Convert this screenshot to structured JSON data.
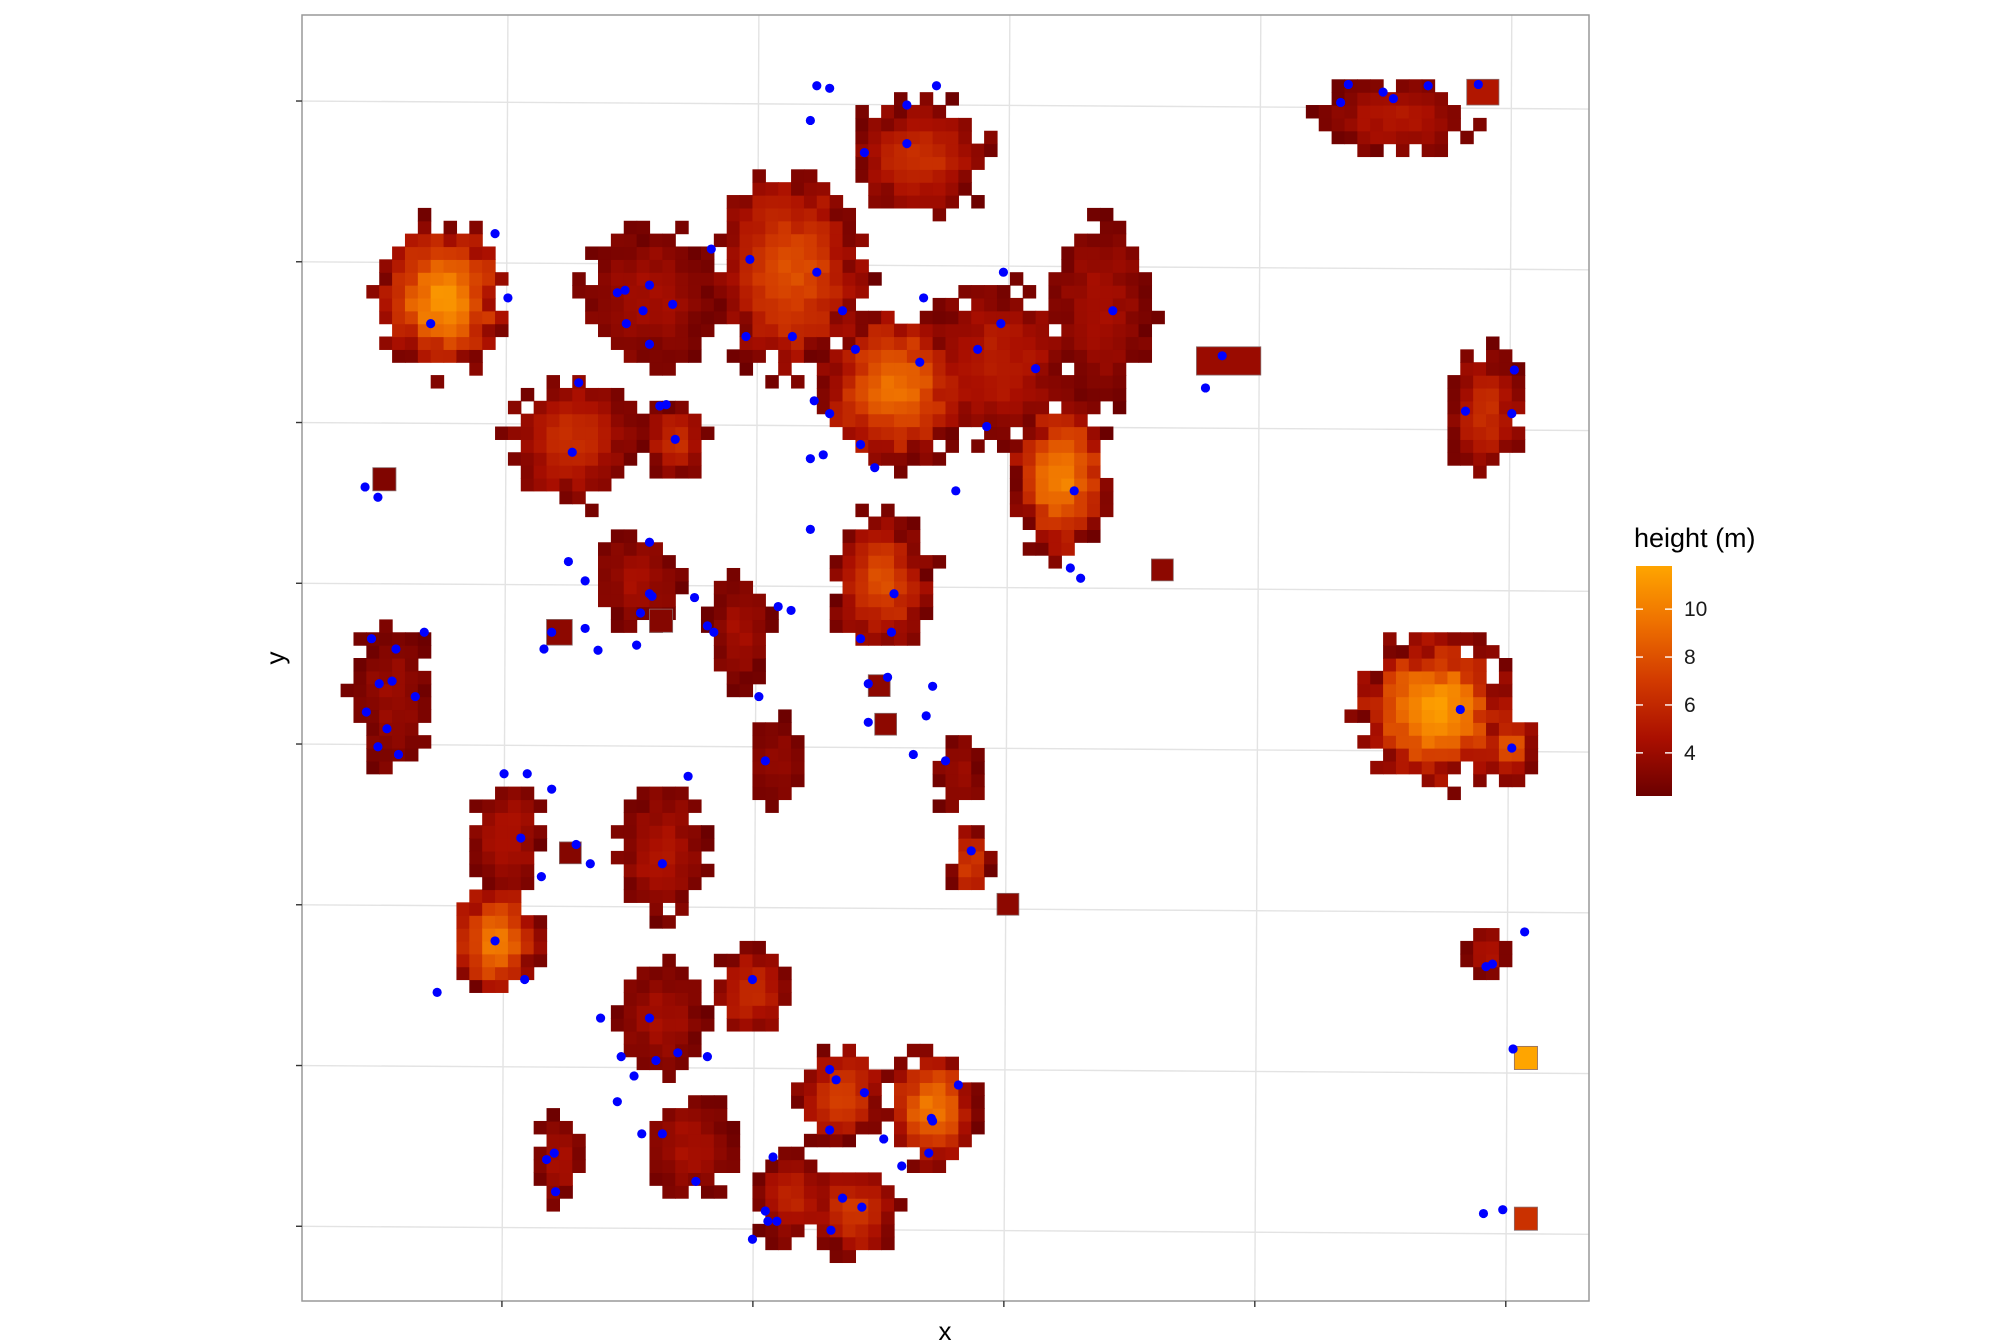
{
  "chart_data": {
    "type": "heatmap",
    "title": "",
    "xlabel": "x",
    "ylabel": "y",
    "x_tick_labels": [],
    "y_tick_labels": [],
    "grid": true,
    "xlim": [
      0,
      1
    ],
    "ylim": [
      0,
      1
    ],
    "legend": {
      "title": "height (m)",
      "position": "right",
      "range": [
        2.2,
        11.8
      ],
      "ticks": [
        4,
        6,
        8,
        10
      ],
      "tick_labels": [
        "4",
        "6",
        "8",
        "10"
      ],
      "colors": [
        "#6b0000",
        "#aa0f00",
        "#d23a00",
        "#ee7000",
        "#ffa500"
      ]
    },
    "point_color": "#0000ff",
    "crowns": [
      {
        "cx": 0.11,
        "cy": 0.78,
        "rx": 0.05,
        "ry": 0.06,
        "peak": 11.2,
        "treetop": [
          0.1,
          0.76
        ]
      },
      {
        "cx": 0.48,
        "cy": 0.89,
        "rx": 0.055,
        "ry": 0.045,
        "peak": 6.5,
        "treetop": [
          0.47,
          0.93
        ]
      },
      {
        "cx": 0.85,
        "cy": 0.92,
        "rx": 0.06,
        "ry": 0.03,
        "peak": 5.0,
        "treetop": [
          0.84,
          0.94
        ]
      },
      {
        "cx": 0.27,
        "cy": 0.78,
        "rx": 0.055,
        "ry": 0.055,
        "peak": 4.5,
        "treetop": [
          0.27,
          0.79
        ]
      },
      {
        "cx": 0.38,
        "cy": 0.8,
        "rx": 0.06,
        "ry": 0.08,
        "peak": 8.0,
        "treetop": [
          0.4,
          0.8
        ]
      },
      {
        "cx": 0.46,
        "cy": 0.71,
        "rx": 0.06,
        "ry": 0.06,
        "peak": 9.5,
        "treetop": [
          0.43,
          0.74
        ]
      },
      {
        "cx": 0.54,
        "cy": 0.73,
        "rx": 0.06,
        "ry": 0.06,
        "peak": 5.5,
        "treetop": [
          0.48,
          0.73
        ]
      },
      {
        "cx": 0.62,
        "cy": 0.77,
        "rx": 0.04,
        "ry": 0.07,
        "peak": 4.5,
        "treetop": [
          0.63,
          0.77
        ]
      },
      {
        "cx": 0.59,
        "cy": 0.64,
        "rx": 0.04,
        "ry": 0.06,
        "peak": 10.5,
        "treetop": [
          0.6,
          0.63
        ]
      },
      {
        "cx": 0.21,
        "cy": 0.67,
        "rx": 0.05,
        "ry": 0.05,
        "peak": 6.5,
        "treetop": [
          0.21,
          0.66
        ]
      },
      {
        "cx": 0.29,
        "cy": 0.67,
        "rx": 0.025,
        "ry": 0.03,
        "peak": 6.5,
        "treetop": [
          0.29,
          0.67
        ]
      },
      {
        "cx": 0.45,
        "cy": 0.56,
        "rx": 0.04,
        "ry": 0.05,
        "peak": 8.0,
        "treetop": [
          0.46,
          0.55
        ]
      },
      {
        "cx": 0.07,
        "cy": 0.47,
        "rx": 0.03,
        "ry": 0.06,
        "peak": 4.0,
        "treetop": [
          0.06,
          0.48
        ]
      },
      {
        "cx": 0.26,
        "cy": 0.56,
        "rx": 0.035,
        "ry": 0.035,
        "peak": 4.5,
        "treetop": [
          0.27,
          0.55
        ]
      },
      {
        "cx": 0.34,
        "cy": 0.52,
        "rx": 0.025,
        "ry": 0.045,
        "peak": 4.5,
        "treetop": [
          0.32,
          0.52
        ]
      },
      {
        "cx": 0.92,
        "cy": 0.69,
        "rx": 0.03,
        "ry": 0.05,
        "peak": 6.5,
        "treetop": [
          0.94,
          0.69
        ]
      },
      {
        "cx": 0.88,
        "cy": 0.46,
        "rx": 0.06,
        "ry": 0.06,
        "peak": 11.5,
        "treetop": [
          0.9,
          0.46
        ]
      },
      {
        "cx": 0.94,
        "cy": 0.43,
        "rx": 0.02,
        "ry": 0.025,
        "peak": 9.0,
        "treetop": [
          0.94,
          0.43
        ]
      },
      {
        "cx": 0.16,
        "cy": 0.36,
        "rx": 0.03,
        "ry": 0.045,
        "peak": 5.0,
        "treetop": [
          0.17,
          0.36
        ]
      },
      {
        "cx": 0.15,
        "cy": 0.28,
        "rx": 0.035,
        "ry": 0.045,
        "peak": 10.0,
        "treetop": [
          0.15,
          0.28
        ]
      },
      {
        "cx": 0.28,
        "cy": 0.35,
        "rx": 0.035,
        "ry": 0.05,
        "peak": 5.0,
        "treetop": [
          0.28,
          0.34
        ]
      },
      {
        "cx": 0.37,
        "cy": 0.42,
        "rx": 0.02,
        "ry": 0.035,
        "peak": 4.0,
        "treetop": [
          0.36,
          0.42
        ]
      },
      {
        "cx": 0.51,
        "cy": 0.41,
        "rx": 0.02,
        "ry": 0.03,
        "peak": 4.0,
        "treetop": [
          0.5,
          0.42
        ]
      },
      {
        "cx": 0.52,
        "cy": 0.34,
        "rx": 0.015,
        "ry": 0.03,
        "peak": 7.5,
        "treetop": [
          0.52,
          0.35
        ]
      },
      {
        "cx": 0.28,
        "cy": 0.22,
        "rx": 0.035,
        "ry": 0.045,
        "peak": 4.5,
        "treetop": [
          0.27,
          0.22
        ]
      },
      {
        "cx": 0.35,
        "cy": 0.24,
        "rx": 0.03,
        "ry": 0.035,
        "peak": 6.5,
        "treetop": [
          0.35,
          0.25
        ]
      },
      {
        "cx": 0.42,
        "cy": 0.16,
        "rx": 0.035,
        "ry": 0.04,
        "peak": 7.5,
        "treetop": [
          0.41,
          0.18
        ]
      },
      {
        "cx": 0.49,
        "cy": 0.15,
        "rx": 0.035,
        "ry": 0.045,
        "peak": 10.0,
        "treetop": [
          0.49,
          0.14
        ]
      },
      {
        "cx": 0.2,
        "cy": 0.11,
        "rx": 0.02,
        "ry": 0.035,
        "peak": 4.5,
        "treetop": [
          0.19,
          0.11
        ]
      },
      {
        "cx": 0.3,
        "cy": 0.12,
        "rx": 0.035,
        "ry": 0.04,
        "peak": 4.5,
        "treetop": [
          0.28,
          0.13
        ]
      },
      {
        "cx": 0.38,
        "cy": 0.08,
        "rx": 0.03,
        "ry": 0.035,
        "peak": 6.0,
        "treetop": [
          0.36,
          0.07
        ]
      },
      {
        "cx": 0.43,
        "cy": 0.07,
        "rx": 0.035,
        "ry": 0.035,
        "peak": 7.0,
        "treetop": [
          0.42,
          0.08
        ]
      },
      {
        "cx": 0.92,
        "cy": 0.27,
        "rx": 0.018,
        "ry": 0.02,
        "peak": 5.0,
        "treetop": [
          0.92,
          0.26
        ]
      }
    ],
    "small_patches": [
      {
        "x": 0.055,
        "y": 0.63,
        "w": 0.018,
        "h": 0.018,
        "value": 3.0
      },
      {
        "x": 0.19,
        "y": 0.51,
        "w": 0.02,
        "h": 0.02,
        "value": 3.5
      },
      {
        "x": 0.27,
        "y": 0.52,
        "w": 0.018,
        "h": 0.018,
        "value": 3.2
      },
      {
        "x": 0.2,
        "y": 0.34,
        "w": 0.017,
        "h": 0.017,
        "value": 3.2
      },
      {
        "x": 0.44,
        "y": 0.47,
        "w": 0.017,
        "h": 0.017,
        "value": 3.5
      },
      {
        "x": 0.445,
        "y": 0.44,
        "w": 0.017,
        "h": 0.017,
        "value": 3.5
      },
      {
        "x": 0.54,
        "y": 0.3,
        "w": 0.017,
        "h": 0.017,
        "value": 3.5
      },
      {
        "x": 0.66,
        "y": 0.56,
        "w": 0.017,
        "h": 0.017,
        "value": 3.5
      },
      {
        "x": 0.695,
        "y": 0.72,
        "w": 0.05,
        "h": 0.022,
        "value": 4.0
      },
      {
        "x": 0.905,
        "y": 0.93,
        "w": 0.025,
        "h": 0.02,
        "value": 5.0
      },
      {
        "x": 0.942,
        "y": 0.18,
        "w": 0.018,
        "h": 0.018,
        "value": 11.8
      },
      {
        "x": 0.942,
        "y": 0.055,
        "w": 0.018,
        "h": 0.018,
        "value": 6.5
      }
    ],
    "treetops": [
      [
        0.049,
        0.633
      ],
      [
        0.059,
        0.625
      ],
      [
        0.054,
        0.515
      ],
      [
        0.073,
        0.507
      ],
      [
        0.095,
        0.52
      ],
      [
        0.07,
        0.482
      ],
      [
        0.066,
        0.445
      ],
      [
        0.088,
        0.47
      ],
      [
        0.075,
        0.425
      ],
      [
        0.059,
        0.431
      ],
      [
        0.05,
        0.458
      ],
      [
        0.188,
        0.507
      ],
      [
        0.194,
        0.52
      ],
      [
        0.22,
        0.523
      ],
      [
        0.23,
        0.506
      ],
      [
        0.22,
        0.56
      ],
      [
        0.207,
        0.575
      ],
      [
        0.272,
        0.548
      ],
      [
        0.26,
        0.51
      ],
      [
        0.27,
        0.59
      ],
      [
        0.305,
        0.547
      ],
      [
        0.315,
        0.525
      ],
      [
        0.355,
        0.47
      ],
      [
        0.37,
        0.54
      ],
      [
        0.38,
        0.537
      ],
      [
        0.458,
        0.52
      ],
      [
        0.434,
        0.515
      ],
      [
        0.49,
        0.478
      ],
      [
        0.455,
        0.485
      ],
      [
        0.44,
        0.48
      ],
      [
        0.485,
        0.455
      ],
      [
        0.475,
        0.425
      ],
      [
        0.44,
        0.45
      ],
      [
        0.42,
        0.77
      ],
      [
        0.41,
        0.69
      ],
      [
        0.395,
        0.6
      ],
      [
        0.381,
        0.75
      ],
      [
        0.348,
        0.81
      ],
      [
        0.345,
        0.75
      ],
      [
        0.398,
        0.7
      ],
      [
        0.445,
        0.648
      ],
      [
        0.434,
        0.666
      ],
      [
        0.483,
        0.78
      ],
      [
        0.545,
        0.8
      ],
      [
        0.525,
        0.74
      ],
      [
        0.532,
        0.68
      ],
      [
        0.57,
        0.725
      ],
      [
        0.508,
        0.63
      ],
      [
        0.41,
        0.943
      ],
      [
        0.395,
        0.918
      ],
      [
        0.4,
        0.945
      ],
      [
        0.437,
        0.893
      ],
      [
        0.47,
        0.9
      ],
      [
        0.493,
        0.945
      ],
      [
        0.543,
        0.76
      ],
      [
        0.15,
        0.83
      ],
      [
        0.16,
        0.78
      ],
      [
        0.215,
        0.714
      ],
      [
        0.251,
        0.786
      ],
      [
        0.265,
        0.77
      ],
      [
        0.283,
        0.697
      ],
      [
        0.405,
        0.658
      ],
      [
        0.318,
        0.818
      ],
      [
        0.27,
        0.744
      ],
      [
        0.288,
        0.775
      ],
      [
        0.252,
        0.76
      ],
      [
        0.245,
        0.784
      ],
      [
        0.278,
        0.696
      ],
      [
        0.263,
        0.535
      ],
      [
        0.395,
        0.655
      ],
      [
        0.597,
        0.57
      ],
      [
        0.605,
        0.562
      ],
      [
        0.715,
        0.735
      ],
      [
        0.702,
        0.71
      ],
      [
        0.807,
        0.932
      ],
      [
        0.813,
        0.946
      ],
      [
        0.848,
        0.935
      ],
      [
        0.875,
        0.945
      ],
      [
        0.914,
        0.946
      ],
      [
        0.904,
        0.692
      ],
      [
        0.942,
        0.724
      ],
      [
        0.941,
        0.196
      ],
      [
        0.918,
        0.068
      ],
      [
        0.933,
        0.071
      ],
      [
        0.95,
        0.287
      ],
      [
        0.925,
        0.262
      ],
      [
        0.173,
        0.25
      ],
      [
        0.157,
        0.41
      ],
      [
        0.194,
        0.398
      ],
      [
        0.175,
        0.41
      ],
      [
        0.105,
        0.24
      ],
      [
        0.186,
        0.33
      ],
      [
        0.224,
        0.34
      ],
      [
        0.213,
        0.355
      ],
      [
        0.3,
        0.408
      ],
      [
        0.232,
        0.22
      ],
      [
        0.258,
        0.175
      ],
      [
        0.275,
        0.187
      ],
      [
        0.292,
        0.193
      ],
      [
        0.315,
        0.19
      ],
      [
        0.245,
        0.155
      ],
      [
        0.248,
        0.19
      ],
      [
        0.264,
        0.13
      ],
      [
        0.306,
        0.093
      ],
      [
        0.366,
        0.112
      ],
      [
        0.41,
        0.133
      ],
      [
        0.437,
        0.162
      ],
      [
        0.452,
        0.126
      ],
      [
        0.466,
        0.105
      ],
      [
        0.489,
        0.142
      ],
      [
        0.51,
        0.168
      ],
      [
        0.487,
        0.115
      ],
      [
        0.35,
        0.048
      ],
      [
        0.362,
        0.062
      ],
      [
        0.411,
        0.055
      ],
      [
        0.435,
        0.073
      ],
      [
        0.197,
        0.085
      ],
      [
        0.196,
        0.115
      ],
      [
        0.369,
        0.062
      ],
      [
        0.415,
        0.172
      ]
    ]
  }
}
